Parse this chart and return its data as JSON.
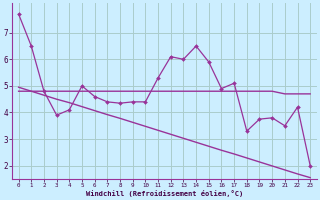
{
  "xlabel": "Windchill (Refroidissement éolien,°C)",
  "bg_color": "#cceeff",
  "grid_color": "#aacccc",
  "line_color": "#993399",
  "x_data": [
    0,
    1,
    2,
    3,
    4,
    5,
    6,
    7,
    8,
    9,
    10,
    11,
    12,
    13,
    14,
    15,
    16,
    17,
    18,
    19,
    20,
    21,
    22,
    23
  ],
  "y_main": [
    7.7,
    6.5,
    4.8,
    3.9,
    4.1,
    5.0,
    4.6,
    4.4,
    4.35,
    4.4,
    4.4,
    5.3,
    6.1,
    6.0,
    6.5,
    5.9,
    4.9,
    5.1,
    3.3,
    3.75,
    3.8,
    3.5,
    4.2,
    2.0
  ],
  "y_flat": [
    4.8,
    4.8,
    4.8,
    4.8,
    4.8,
    4.8,
    4.8,
    4.8,
    4.8,
    4.8,
    4.8,
    4.8,
    4.8,
    4.8,
    4.8,
    4.8,
    4.8,
    4.8,
    4.8,
    4.8,
    4.8,
    4.7,
    4.7,
    4.7
  ],
  "y_trend": [
    4.95,
    4.8,
    4.65,
    4.5,
    4.37,
    4.22,
    4.07,
    3.92,
    3.78,
    3.63,
    3.48,
    3.33,
    3.18,
    3.03,
    2.88,
    2.73,
    2.58,
    2.44,
    2.29,
    2.14,
    1.99,
    1.84,
    1.69,
    1.55
  ],
  "ylim": [
    1.5,
    8.1
  ],
  "xlim": [
    -0.5,
    23.5
  ],
  "yticks": [
    2,
    3,
    4,
    5,
    6,
    7
  ],
  "xticks": [
    0,
    1,
    2,
    3,
    4,
    5,
    6,
    7,
    8,
    9,
    10,
    11,
    12,
    13,
    14,
    15,
    16,
    17,
    18,
    19,
    20,
    21,
    22,
    23
  ]
}
